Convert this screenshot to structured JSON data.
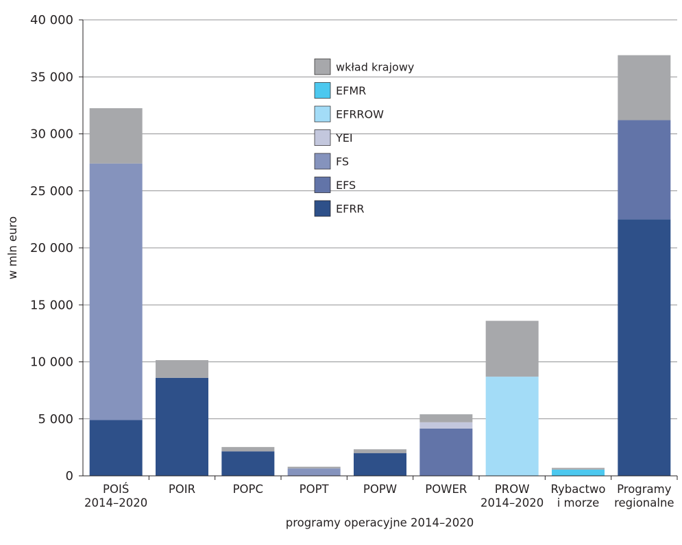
{
  "chart_data": {
    "type": "bar",
    "stacked": true,
    "title": "",
    "xlabel": "programy operacyjne 2014–2020",
    "ylabel": "w mln euro",
    "ylim": [
      0,
      40000
    ],
    "yticks": [
      {
        "value": 0,
        "label": "0"
      },
      {
        "value": 5000,
        "label": "5 000"
      },
      {
        "value": 10000,
        "label": "10 000"
      },
      {
        "value": 15000,
        "label": "15 000"
      },
      {
        "value": 20000,
        "label": "20 000"
      },
      {
        "value": 25000,
        "label": "25 000"
      },
      {
        "value": 30000,
        "label": "30 000"
      },
      {
        "value": 35000,
        "label": "35 000"
      },
      {
        "value": 40000,
        "label": "40 000"
      }
    ],
    "grid": true,
    "legend_position": "top-center",
    "categories": [
      [
        "POIŚ",
        "2014–2020"
      ],
      [
        "POIR"
      ],
      [
        "POPC"
      ],
      [
        "POPT"
      ],
      [
        "POPW"
      ],
      [
        "POWER"
      ],
      [
        "PROW",
        "2014–2020"
      ],
      [
        "Rybactwo",
        "i morze"
      ],
      [
        "Programy",
        "regionalne"
      ]
    ],
    "series": [
      {
        "name": "EFRR",
        "color": "#2e5089",
        "values": [
          4900,
          8600,
          2150,
          0,
          2000,
          0,
          0,
          0,
          22500
        ]
      },
      {
        "name": "EFS",
        "color": "#6274a8",
        "values": [
          0,
          0,
          0,
          0,
          0,
          4150,
          0,
          0,
          8700
        ]
      },
      {
        "name": "FS",
        "color": "#8593bd",
        "values": [
          22500,
          0,
          0,
          650,
          0,
          0,
          0,
          0,
          0
        ]
      },
      {
        "name": "YEI",
        "color": "#c3c7dd",
        "values": [
          0,
          0,
          0,
          0,
          0,
          550,
          0,
          0,
          0
        ]
      },
      {
        "name": "EFRROW",
        "color": "#a3dcf7",
        "values": [
          0,
          0,
          0,
          0,
          0,
          0,
          8700,
          0,
          0
        ]
      },
      {
        "name": "EFMR",
        "color": "#4cc8ef",
        "values": [
          0,
          0,
          0,
          0,
          0,
          0,
          0,
          550,
          0
        ]
      },
      {
        "name": "wkład krajowy",
        "color": "#a7a8ab",
        "values": [
          4850,
          1550,
          380,
          150,
          330,
          700,
          4900,
          150,
          5700
        ]
      }
    ],
    "legend_order": [
      "wkład krajowy",
      "EFMR",
      "EFRROW",
      "YEI",
      "FS",
      "EFS",
      "EFRR"
    ]
  }
}
